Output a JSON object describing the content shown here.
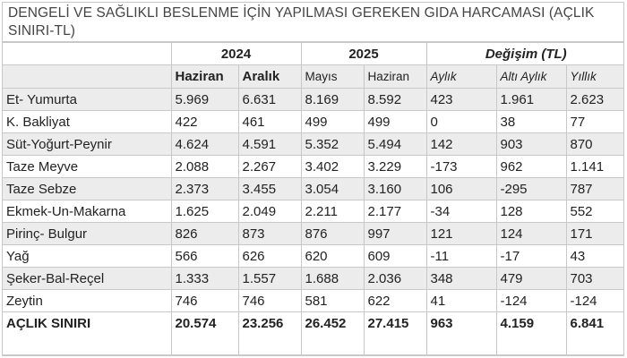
{
  "title": "DENGELİ VE SAĞLIKLI BESLENME İÇİN YAPILMASI GEREKEN GIDA HARCAMASI (AÇLIK SINIRI-TL)",
  "header": {
    "group_2024": "2024",
    "group_2025": "2025",
    "group_change": "Değişim (TL)",
    "columns": [
      "Haziran",
      "Aralık",
      "Mayıs",
      "Haziran",
      "Aylık",
      "Altı Aylık",
      "Yıllık"
    ]
  },
  "rows": [
    {
      "item": "Et- Yumurta",
      "values": [
        "5.969",
        "6.631",
        "8.169",
        "8.592",
        "423",
        "1.961",
        "2.623"
      ]
    },
    {
      "item": "K. Bakliyat",
      "values": [
        "422",
        "461",
        "499",
        "499",
        "0",
        "38",
        "77"
      ]
    },
    {
      "item": "Süt-Yoğurt-Peynir",
      "values": [
        "4.624",
        "4.591",
        "5.352",
        "5.494",
        "142",
        "903",
        "870"
      ]
    },
    {
      "item": "Taze Meyve",
      "values": [
        "2.088",
        "2.267",
        "3.402",
        "3.229",
        "-173",
        "962",
        "1.141"
      ]
    },
    {
      "item": "Taze Sebze",
      "values": [
        "2.373",
        "3.455",
        "3.054",
        "3.160",
        "106",
        "-295",
        "787"
      ]
    },
    {
      "item": "Ekmek-Un-Makarna",
      "values": [
        "1.625",
        "2.049",
        "2.211",
        "2.177",
        "-34",
        "128",
        "552"
      ]
    },
    {
      "item": "Pirinç- Bulgur",
      "values": [
        "826",
        "873",
        "876",
        "997",
        "121",
        "124",
        "171"
      ]
    },
    {
      "item": "Yağ",
      "values": [
        "566",
        "626",
        "620",
        "609",
        "-11",
        "-17",
        "43"
      ]
    },
    {
      "item": "Şeker-Bal-Reçel",
      "values": [
        "1.333",
        "1.557",
        "1.688",
        "2.036",
        "348",
        "479",
        "703"
      ]
    },
    {
      "item": "Zeytin",
      "values": [
        "746",
        "746",
        "581",
        "622",
        "41",
        "-124",
        "-124"
      ]
    }
  ],
  "total": {
    "item": "AÇLIK SINIRI",
    "values": [
      "20.574",
      "23.256",
      "26.452",
      "27.415",
      "963",
      "4.159",
      "6.841"
    ]
  }
}
